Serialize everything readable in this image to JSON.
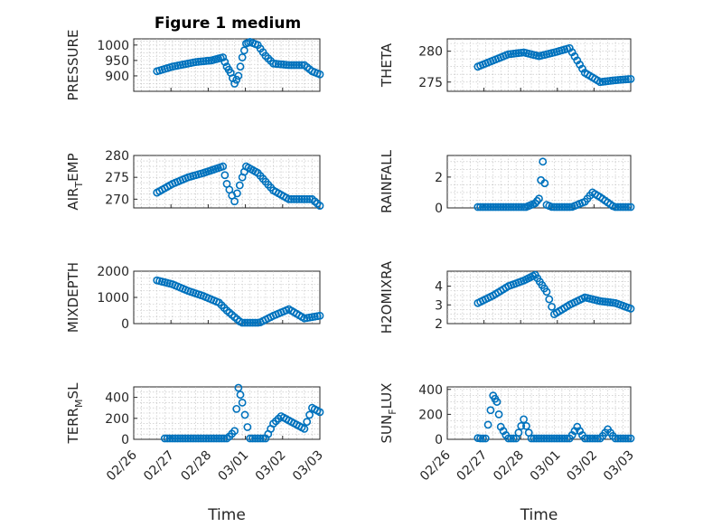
{
  "figure": {
    "title": "Figure 1 medium",
    "marker_color": "#0072BD",
    "x_axis_label": "Time",
    "date_ticks": [
      "02/26",
      "02/27",
      "02/28",
      "03/01",
      "03/02",
      "03/03"
    ]
  },
  "chart_data": [
    {
      "type": "scatter",
      "ylabel": "PRESSURE",
      "title": "Figure 1 medium",
      "ylim": [
        850,
        1020
      ],
      "yticks": [
        900,
        950,
        1000
      ],
      "xlabel": "",
      "grid": true,
      "xlim": [
        "2024-02-26",
        "2024-03-03"
      ],
      "series": [
        {
          "x": [
            "2024-02-26T18:00",
            "2024-02-27T06:00",
            "2024-02-27T12:00",
            "2024-02-28T00:00",
            "2024-02-28T12:00",
            "2024-02-28T21:00",
            "2024-02-29T00:00",
            "2024-02-29T03:00",
            "2024-02-29T06:00",
            "2024-02-29T09:00",
            "2024-02-29T12:00",
            "2024-02-29T15:00",
            "2024-02-29T18:00",
            "2024-03-01T00:00",
            "2024-03-01T06:00",
            "2024-03-01T12:00",
            "2024-03-02T00:00",
            "2024-03-02T12:00",
            "2024-03-02T18:00",
            "2024-03-03T00:00"
          ],
          "y": [
            915,
            930,
            935,
            945,
            950,
            960,
            930,
            910,
            875,
            900,
            960,
            1005,
            1010,
            1000,
            965,
            940,
            935,
            935,
            915,
            905
          ]
        }
      ]
    },
    {
      "type": "scatter",
      "ylabel": "THETA",
      "ylim": [
        273.5,
        282
      ],
      "yticks": [
        275,
        280
      ],
      "xlabel": "",
      "grid": true,
      "xlim": [
        "2024-02-26",
        "2024-03-03"
      ],
      "series": [
        {
          "x": [
            "2024-02-27T00:00",
            "2024-02-27T12:00",
            "2024-02-28T00:00",
            "2024-02-28T12:00",
            "2024-02-29T00:00",
            "2024-02-29T12:00",
            "2024-03-01T00:00",
            "2024-03-01T06:00",
            "2024-03-01T12:00",
            "2024-03-02T00:00",
            "2024-03-02T12:00",
            "2024-03-03T00:00"
          ],
          "y": [
            277.5,
            278.5,
            279.5,
            279.8,
            279.2,
            279.8,
            280.5,
            278.5,
            276.5,
            275.0,
            275.3,
            275.5
          ]
        }
      ]
    },
    {
      "type": "scatter",
      "ylabel": "AIR_TEMP",
      "ylim": [
        268,
        280
      ],
      "yticks": [
        270,
        275,
        280
      ],
      "xlabel": "",
      "grid": true,
      "xlim": [
        "2024-02-26",
        "2024-03-03"
      ],
      "series": [
        {
          "x": [
            "2024-02-26T18:00",
            "2024-02-27T06:00",
            "2024-02-27T18:00",
            "2024-02-28T06:00",
            "2024-02-28T21:00",
            "2024-02-29T00:00",
            "2024-02-29T06:00",
            "2024-02-29T12:00",
            "2024-02-29T15:00",
            "2024-03-01T00:00",
            "2024-03-01T12:00",
            "2024-03-02T00:00",
            "2024-03-02T18:00",
            "2024-03-03T00:00"
          ],
          "y": [
            271.5,
            273.5,
            275,
            276,
            277.5,
            273.5,
            269.5,
            275,
            277.5,
            276,
            272,
            270,
            270,
            268.5
          ]
        }
      ]
    },
    {
      "type": "scatter",
      "ylabel": "RAINFALL",
      "ylim": [
        0,
        3.4
      ],
      "yticks": [
        0,
        2
      ],
      "xlabel": "",
      "grid": true,
      "xlim": [
        "2024-02-26",
        "2024-03-03"
      ],
      "series": [
        {
          "x": [
            "2024-02-27T00:00",
            "2024-02-27T12:00",
            "2024-02-28T00:00",
            "2024-02-28T12:00",
            "2024-02-28T21:00",
            "2024-02-29T00:00",
            "2024-02-29T03:00",
            "2024-02-29T06:00",
            "2024-02-29T12:00",
            "2024-03-01T00:00",
            "2024-03-01T12:00",
            "2024-03-01T18:00",
            "2024-03-02T00:00",
            "2024-03-02T12:00",
            "2024-03-03T00:00"
          ],
          "y": [
            0,
            0,
            0,
            0,
            0.3,
            0.6,
            3.0,
            0.2,
            0,
            0,
            0.4,
            1.0,
            0.7,
            0,
            0
          ]
        }
      ]
    },
    {
      "type": "scatter",
      "ylabel": "MIXDEPTH",
      "ylim": [
        0,
        2000
      ],
      "yticks": [
        0,
        1000,
        2000
      ],
      "xlabel": "",
      "grid": true,
      "xlim": [
        "2024-02-26",
        "2024-03-03"
      ],
      "series": [
        {
          "x": [
            "2024-02-26T18:00",
            "2024-02-27T06:00",
            "2024-02-27T18:00",
            "2024-02-28T06:00",
            "2024-02-28T18:00",
            "2024-02-29T00:00",
            "2024-02-29T06:00",
            "2024-02-29T12:00",
            "2024-03-01T00:00",
            "2024-03-01T12:00",
            "2024-03-02T00:00",
            "2024-03-02T12:00",
            "2024-03-03T00:00"
          ],
          "y": [
            1650,
            1500,
            1250,
            1050,
            800,
            500,
            250,
            0,
            0,
            300,
            550,
            200,
            300
          ]
        }
      ]
    },
    {
      "type": "scatter",
      "ylabel": "H2OMIXRA",
      "ylim": [
        2,
        4.8
      ],
      "yticks": [
        2,
        3,
        4
      ],
      "xlabel": "",
      "grid": true,
      "xlim": [
        "2024-02-26",
        "2024-03-03"
      ],
      "series": [
        {
          "x": [
            "2024-02-27T00:00",
            "2024-02-27T12:00",
            "2024-02-28T00:00",
            "2024-02-28T12:00",
            "2024-02-28T21:00",
            "2024-02-29T06:00",
            "2024-02-29T12:00",
            "2024-03-01T00:00",
            "2024-03-01T12:00",
            "2024-03-02T00:00",
            "2024-03-02T12:00",
            "2024-03-03T00:00"
          ],
          "y": [
            3.1,
            3.5,
            4.0,
            4.3,
            4.6,
            3.7,
            2.5,
            3.0,
            3.4,
            3.2,
            3.1,
            2.8
          ]
        }
      ]
    },
    {
      "type": "scatter",
      "ylabel": "TERR_MSL",
      "ylim": [
        0,
        500
      ],
      "yticks": [
        0,
        200,
        400
      ],
      "xlabel": "Time",
      "grid": true,
      "xlim": [
        "2024-02-26",
        "2024-03-03"
      ],
      "series": [
        {
          "x": [
            "2024-02-27T00:00",
            "2024-02-28T00:00",
            "2024-02-29T00:00",
            "2024-02-29T06:00",
            "2024-02-29T09:00",
            "2024-02-29T12:00",
            "2024-02-29T18:00",
            "2024-03-01T06:00",
            "2024-03-01T12:00",
            "2024-03-01T18:00",
            "2024-03-02T12:00",
            "2024-03-02T18:00",
            "2024-03-03T00:00"
          ],
          "y": [
            0,
            0,
            0,
            80,
            500,
            350,
            0,
            0,
            150,
            220,
            100,
            300,
            260
          ]
        }
      ]
    },
    {
      "type": "scatter",
      "ylabel": "SUN_FLUX",
      "ylim": [
        0,
        420
      ],
      "yticks": [
        0,
        200,
        400
      ],
      "xlabel": "Time",
      "grid": true,
      "xlim": [
        "2024-02-26",
        "2024-03-03"
      ],
      "series": [
        {
          "x": [
            "2024-02-27T00:00",
            "2024-02-27T06:00",
            "2024-02-27T12:00",
            "2024-02-27T15:00",
            "2024-02-27T18:00",
            "2024-02-28T00:00",
            "2024-02-28T06:00",
            "2024-02-28T12:00",
            "2024-02-28T18:00",
            "2024-03-01T00:00",
            "2024-03-01T06:00",
            "2024-03-01T12:00",
            "2024-03-02T00:00",
            "2024-03-02T06:00",
            "2024-03-02T12:00",
            "2024-03-03T00:00"
          ],
          "y": [
            10,
            0,
            350,
            300,
            100,
            0,
            0,
            160,
            0,
            0,
            100,
            0,
            0,
            80,
            0,
            0
          ]
        }
      ]
    }
  ]
}
